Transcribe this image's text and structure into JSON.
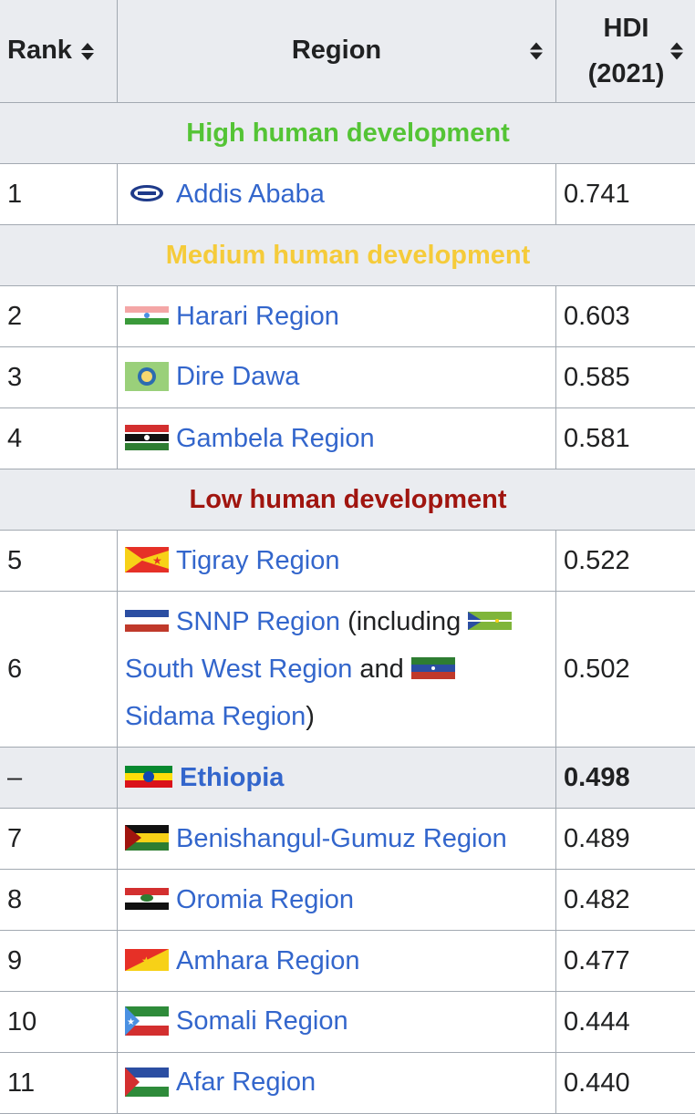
{
  "header": {
    "rank": "Rank",
    "region": "Region",
    "hdi_line1": "HDI",
    "hdi_line2": "(2021)"
  },
  "colors": {
    "high": "#54c435",
    "medium": "#f5cb3a",
    "low": "#a0150f",
    "link": "#3366cc"
  },
  "groups": {
    "high": "High human development",
    "medium": "Medium human development",
    "low": "Low human development"
  },
  "rows": [
    {
      "rank": "1",
      "region": "Addis Ababa",
      "hdi": "0.741",
      "flag": "addis-ababa-emblem-icon"
    },
    {
      "rank": "2",
      "region": "Harari Region",
      "hdi": "0.603",
      "flag": "harari-flag-icon"
    },
    {
      "rank": "3",
      "region": "Dire Dawa",
      "hdi": "0.585",
      "flag": "dire-dawa-flag-icon"
    },
    {
      "rank": "4",
      "region": "Gambela Region",
      "hdi": "0.581",
      "flag": "gambela-flag-icon"
    },
    {
      "rank": "5",
      "region": "Tigray Region",
      "hdi": "0.522",
      "flag": "tigray-flag-icon"
    },
    {
      "rank": "6",
      "region": "SNNP Region",
      "hdi": "0.502",
      "flag": "snnp-flag-icon",
      "text_including": "(including",
      "sub1": "South West Region",
      "text_and": "and",
      "sub2": "Sidama Region",
      "text_close": ")"
    },
    {
      "rank": "–",
      "region": "Ethiopia",
      "hdi": "0.498",
      "flag": "ethiopia-flag-icon"
    },
    {
      "rank": "7",
      "region": "Benishangul-Gumuz Region",
      "hdi": "0.489",
      "flag": "benishangul-gumuz-flag-icon"
    },
    {
      "rank": "8",
      "region": "Oromia Region",
      "hdi": "0.482",
      "flag": "oromia-flag-icon"
    },
    {
      "rank": "9",
      "region": "Amhara Region",
      "hdi": "0.477",
      "flag": "amhara-flag-icon"
    },
    {
      "rank": "10",
      "region": "Somali Region",
      "hdi": "0.444",
      "flag": "somali-flag-icon"
    },
    {
      "rank": "11",
      "region": "Afar Region",
      "hdi": "0.440",
      "flag": "afar-flag-icon"
    }
  ]
}
